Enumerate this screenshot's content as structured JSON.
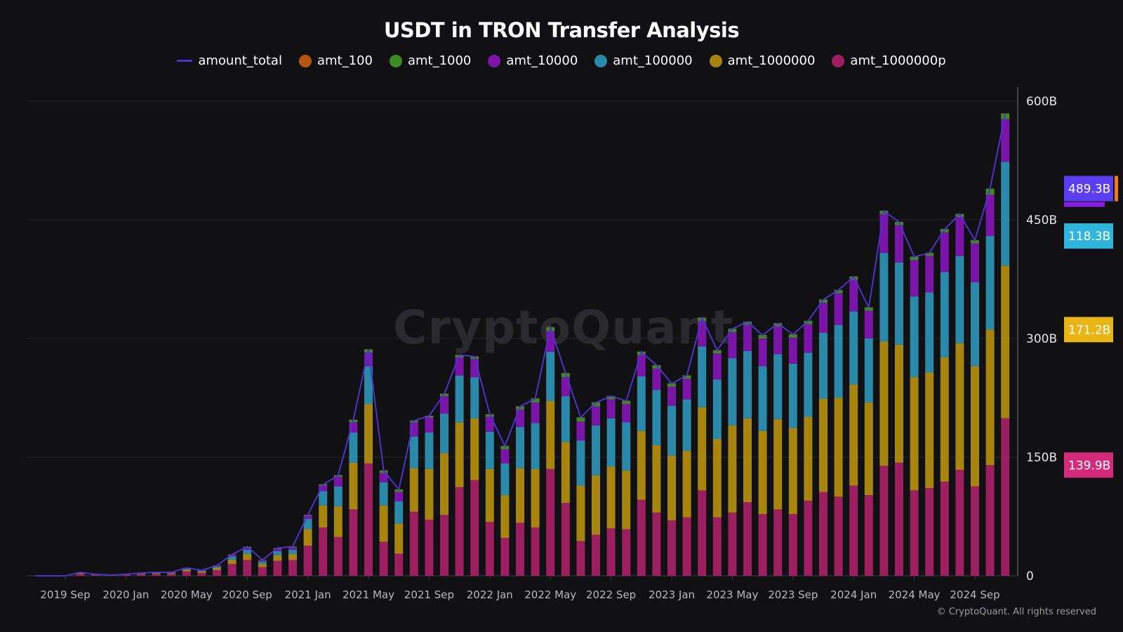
{
  "chart_data": {
    "type": "bar",
    "stacked": true,
    "title": "USDT in TRON Transfer Analysis",
    "legend_position": "top",
    "grid": true,
    "y_axis_side": "right",
    "ylim": [
      0,
      600
    ],
    "y_unit": "B",
    "y_ticks": [
      "0",
      "150B",
      "300B",
      "450B",
      "600B"
    ],
    "x_tick_labels": [
      "2019 Sep",
      "2020 Jan",
      "2020 May",
      "2020 Sep",
      "2021 Jan",
      "2021 May",
      "2021 Sep",
      "2022 Jan",
      "2022 May",
      "2022 Sep",
      "2023 Jan",
      "2023 May",
      "2023 Sep",
      "2024 Jan",
      "2024 May",
      "2024 Sep"
    ],
    "x": [
      "2019-07",
      "2019-08",
      "2019-09",
      "2019-10",
      "2019-11",
      "2019-12",
      "2020-01",
      "2020-02",
      "2020-03",
      "2020-04",
      "2020-05",
      "2020-06",
      "2020-07",
      "2020-08",
      "2020-09",
      "2020-10",
      "2020-11",
      "2020-12",
      "2021-01",
      "2021-02",
      "2021-03",
      "2021-04",
      "2021-05",
      "2021-06",
      "2021-07",
      "2021-08",
      "2021-09",
      "2021-10",
      "2021-11",
      "2021-12",
      "2022-01",
      "2022-02",
      "2022-03",
      "2022-04",
      "2022-05",
      "2022-06",
      "2022-07",
      "2022-08",
      "2022-09",
      "2022-10",
      "2022-11",
      "2022-12",
      "2023-01",
      "2023-02",
      "2023-03",
      "2023-04",
      "2023-05",
      "2023-06",
      "2023-07",
      "2023-08",
      "2023-09",
      "2023-10",
      "2023-11",
      "2023-12",
      "2024-01",
      "2024-02",
      "2024-03",
      "2024-04",
      "2024-05",
      "2024-06",
      "2024-07",
      "2024-08",
      "2024-09",
      "2024-10",
      "2024-11"
    ],
    "series": [
      {
        "name": "amt_1000000p",
        "color": "#9c1f5f",
        "values": [
          0,
          0,
          0,
          2.4,
          1.1,
          0.5,
          1.1,
          1.9,
          2.4,
          2.4,
          5.5,
          3.9,
          7.2,
          15,
          20,
          11,
          19,
          20,
          38,
          61,
          49,
          84,
          142,
          43,
          28,
          81,
          71,
          77,
          112,
          121,
          68,
          48,
          67,
          61,
          135,
          92,
          44,
          52,
          60,
          59,
          96,
          80,
          70,
          74,
          108,
          74,
          80,
          93,
          78,
          84,
          78,
          95,
          106,
          100,
          114,
          102,
          139,
          143,
          108,
          111,
          119,
          134,
          113,
          139.9,
          199
        ]
      },
      {
        "name": "amt_1000000",
        "color": "#a8850f",
        "values": [
          0,
          0,
          0,
          0.9,
          0.4,
          0.2,
          0.4,
          0.7,
          0.9,
          0.9,
          2,
          1.4,
          2.6,
          5.5,
          7.5,
          4,
          7,
          7.5,
          21,
          28,
          39,
          59,
          75,
          46,
          38,
          55,
          64,
          78,
          82,
          78,
          67,
          54,
          69,
          74,
          86,
          77,
          70,
          75,
          78,
          74,
          87,
          85,
          82,
          84,
          105,
          99,
          110,
          106,
          105,
          114,
          109,
          106,
          118,
          125,
          128,
          117,
          157,
          149,
          143,
          146,
          157,
          160,
          152,
          171.2,
          193
        ]
      },
      {
        "name": "amt_100000",
        "color": "#2a89a8",
        "values": [
          0,
          0,
          0,
          0.7,
          0.3,
          0.2,
          0.3,
          0.5,
          0.7,
          0.7,
          1.5,
          1,
          2,
          4,
          5.5,
          3,
          5.3,
          5.5,
          13,
          18,
          25,
          38,
          48,
          29,
          28,
          40,
          46,
          50,
          59,
          52,
          47,
          40,
          52,
          58,
          62,
          58,
          57,
          63,
          61,
          61,
          69,
          70,
          63,
          65,
          77,
          75,
          85,
          85,
          82,
          82,
          81,
          81,
          83,
          92,
          92,
          81,
          112,
          104,
          102,
          101,
          108,
          110,
          106,
          118.3,
          131
        ]
      },
      {
        "name": "amt_10000",
        "color": "#7b15a9",
        "values": [
          0,
          0,
          0,
          0.3,
          0.15,
          0.07,
          0.15,
          0.3,
          0.3,
          0.3,
          0.7,
          0.5,
          0.9,
          1.9,
          2.6,
          1.4,
          2.4,
          2.6,
          4,
          7,
          12,
          13,
          17,
          12,
          12,
          18,
          19,
          22,
          23,
          23,
          19,
          18,
          22,
          26,
          26,
          24,
          24,
          24,
          24,
          23,
          27,
          27,
          24,
          26,
          32,
          33,
          33,
          33,
          35,
          35,
          33,
          36,
          38,
          40,
          40,
          35,
          49,
          47,
          46,
          46,
          50,
          49,
          49,
          52,
          54
        ]
      },
      {
        "name": "amt_1000",
        "color": "#3a8c22",
        "values": [
          0,
          0,
          0,
          0.1,
          0.05,
          0.03,
          0.05,
          0.1,
          0.1,
          0.1,
          0.3,
          0.2,
          0.3,
          0.6,
          1,
          0.6,
          1,
          1,
          1,
          1.5,
          2,
          3,
          4,
          3,
          3,
          2,
          2,
          3,
          3,
          3,
          3,
          4,
          4,
          5,
          5,
          5,
          5,
          5,
          4,
          4,
          4,
          4,
          4,
          4,
          4,
          4,
          4,
          4,
          4,
          4,
          4,
          4,
          4,
          4,
          4,
          4,
          4,
          4,
          4,
          4,
          4,
          4,
          4,
          7.5,
          7
        ]
      },
      {
        "name": "amt_100",
        "color": "#b4560f",
        "values": [
          0,
          0,
          0,
          0.02,
          0.01,
          0.01,
          0.01,
          0.02,
          0.02,
          0.02,
          0.05,
          0.03,
          0.05,
          0.1,
          0.1,
          0.1,
          0.1,
          0.1,
          0.2,
          0.2,
          0.3,
          0.3,
          0.4,
          0.3,
          0.3,
          0.3,
          0.3,
          0.3,
          0.3,
          0.3,
          0.3,
          0.3,
          0.3,
          0.3,
          0.4,
          0.3,
          0.3,
          0.3,
          0.3,
          0.3,
          0.3,
          0.3,
          0.3,
          0.3,
          0.3,
          0.3,
          0.3,
          0.3,
          0.3,
          0.3,
          0.3,
          0.3,
          0.3,
          0.3,
          0.3,
          0.3,
          0.3,
          0.3,
          0.3,
          0.3,
          0.3,
          0.3,
          0.3,
          0.4,
          0.4
        ]
      }
    ],
    "line": {
      "name": "amount_total",
      "color": "#4a34c8",
      "values": [
        0,
        0,
        0,
        4.4,
        2,
        1,
        2,
        3.5,
        4.4,
        4.4,
        10,
        7,
        13,
        27,
        37,
        20,
        35,
        37,
        77,
        115,
        127,
        197,
        286,
        133,
        109,
        196,
        202,
        230,
        279,
        277,
        204,
        164,
        214,
        224,
        314,
        256,
        200,
        219,
        227,
        221,
        283,
        266,
        243,
        253,
        326,
        285,
        312,
        321,
        304,
        319,
        305,
        322,
        349,
        361,
        378,
        339,
        461,
        447,
        403,
        408,
        438,
        457,
        424,
        489.3,
        584
      ]
    },
    "value_labels": [
      {
        "text": "489.3B",
        "series": "amount_total",
        "color": "#5b3ef2"
      },
      {
        "text": "118.3B",
        "series": "amt_100000",
        "color": "#2fb4dc"
      },
      {
        "text": "171.2B",
        "series": "amt_1000000",
        "color": "#e8b514"
      },
      {
        "text": "139.9B",
        "series": "amt_1000000p",
        "color": "#d42a7c"
      }
    ]
  },
  "legend": [
    {
      "label": "amount_total",
      "kind": "line",
      "color": "#4a34c8"
    },
    {
      "label": "amt_100",
      "kind": "dot",
      "color": "#b4560f"
    },
    {
      "label": "amt_1000",
      "kind": "dot",
      "color": "#3a8c22"
    },
    {
      "label": "amt_10000",
      "kind": "dot",
      "color": "#7b15a9"
    },
    {
      "label": "amt_100000",
      "kind": "dot",
      "color": "#2a89a8"
    },
    {
      "label": "amt_1000000",
      "kind": "dot",
      "color": "#a8850f"
    },
    {
      "label": "amt_1000000p",
      "kind": "dot",
      "color": "#9c1f5f"
    }
  ],
  "watermark": "CryptoQuant",
  "copyright": "© CryptoQuant. All rights reserved"
}
